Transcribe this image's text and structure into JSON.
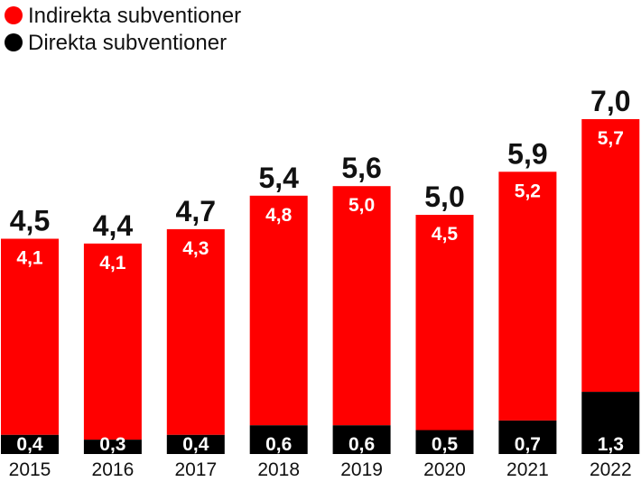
{
  "colors": {
    "indirect": "#ff0000",
    "direct": "#000000",
    "text": "#111111",
    "inner_text": "#ffffff"
  },
  "chart_data": {
    "type": "bar",
    "stacked": true,
    "legend_position": "top-left",
    "grid": false,
    "categories": [
      "2015",
      "2016",
      "2017",
      "2018",
      "2019",
      "2020",
      "2021",
      "2022"
    ],
    "series": [
      {
        "name": "Indirekta subventioner",
        "color": "#ff0000",
        "values": [
          4.1,
          4.1,
          4.3,
          4.8,
          5.0,
          4.5,
          5.2,
          5.7
        ],
        "labels": [
          "4,1",
          "4,1",
          "4,3",
          "4,8",
          "5,0",
          "4,5",
          "5,2",
          "5,7"
        ]
      },
      {
        "name": "Direkta subventioner",
        "color": "#000000",
        "values": [
          0.4,
          0.3,
          0.4,
          0.6,
          0.6,
          0.5,
          0.7,
          1.3
        ],
        "labels": [
          "0,4",
          "0,3",
          "0,4",
          "0,6",
          "0,6",
          "0,5",
          "0,7",
          "1,3"
        ]
      }
    ],
    "totals": [
      4.5,
      4.4,
      4.7,
      5.4,
      5.6,
      5.0,
      5.9,
      7.0
    ],
    "total_labels": [
      "4,5",
      "4,4",
      "4,7",
      "5,4",
      "5,6",
      "5,0",
      "5,9",
      "7,0"
    ]
  }
}
